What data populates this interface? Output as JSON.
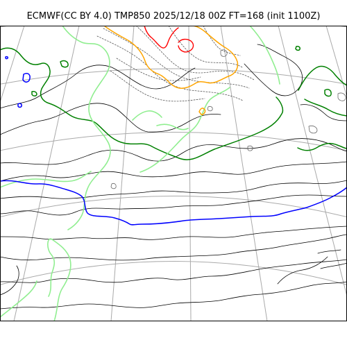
{
  "header": {
    "title": "ECMWF(CC BY 4.0) TMP850 2025/12/18 00Z FT=168 (init 1100Z)"
  },
  "map": {
    "variable": "TMP850",
    "projection": "polar stereographic",
    "colors": {
      "gridlines": "#a9a9a9",
      "temperature_contours": "#000000",
      "freezing_isotherm": "#0000ff",
      "warm_isotherm": "#008000",
      "light_green_isotherm": "#90ee90",
      "orange_isotherm": "#ffa500",
      "red_isotherm": "#ff0000",
      "background": "#ffffff"
    }
  }
}
